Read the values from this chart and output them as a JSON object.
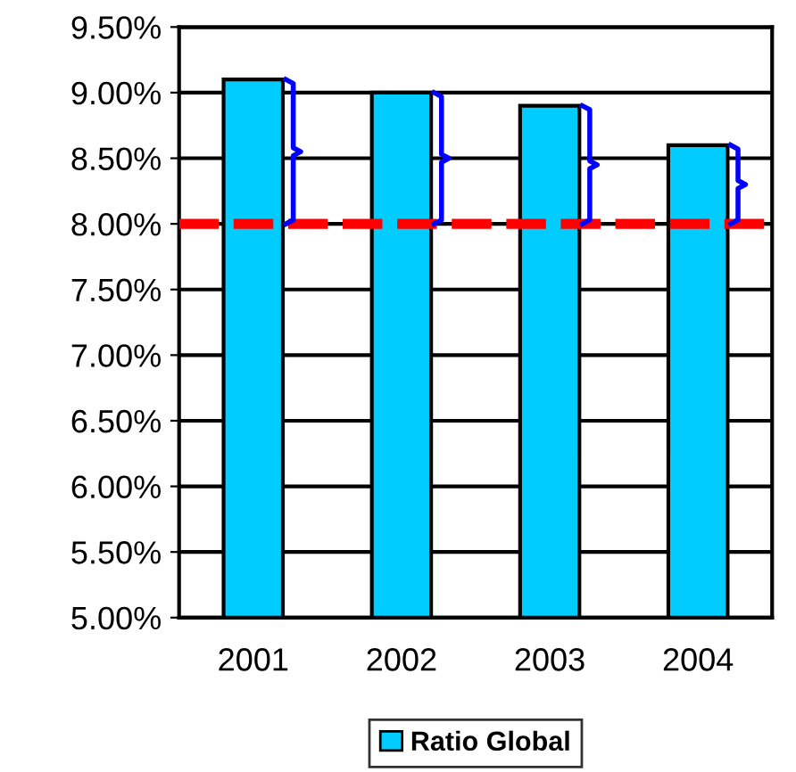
{
  "chart_data": {
    "type": "bar",
    "categories": [
      "2001",
      "2002",
      "2003",
      "2004"
    ],
    "series": [
      {
        "name": "Ratio Global",
        "color": "#00ccff",
        "values": [
          9.1,
          9.0,
          8.9,
          8.6
        ]
      }
    ],
    "ylim": [
      5.0,
      9.5
    ],
    "yticks": [
      {
        "value": 5.0,
        "label": "5.00%"
      },
      {
        "value": 5.5,
        "label": "5.50%"
      },
      {
        "value": 6.0,
        "label": "6.00%"
      },
      {
        "value": 6.5,
        "label": "6.50%"
      },
      {
        "value": 7.0,
        "label": "7.00%"
      },
      {
        "value": 7.5,
        "label": "7.50%"
      },
      {
        "value": 8.0,
        "label": "8.00%"
      },
      {
        "value": 8.5,
        "label": "8.50%"
      },
      {
        "value": 9.0,
        "label": "9.00%"
      },
      {
        "value": 9.5,
        "label": "9.50%"
      }
    ],
    "ref_lines": [
      {
        "axis": "y",
        "value": 8.0,
        "color": "#ff0000",
        "line_style": "dashed"
      }
    ],
    "grid": "y",
    "legend": "bottom"
  }
}
